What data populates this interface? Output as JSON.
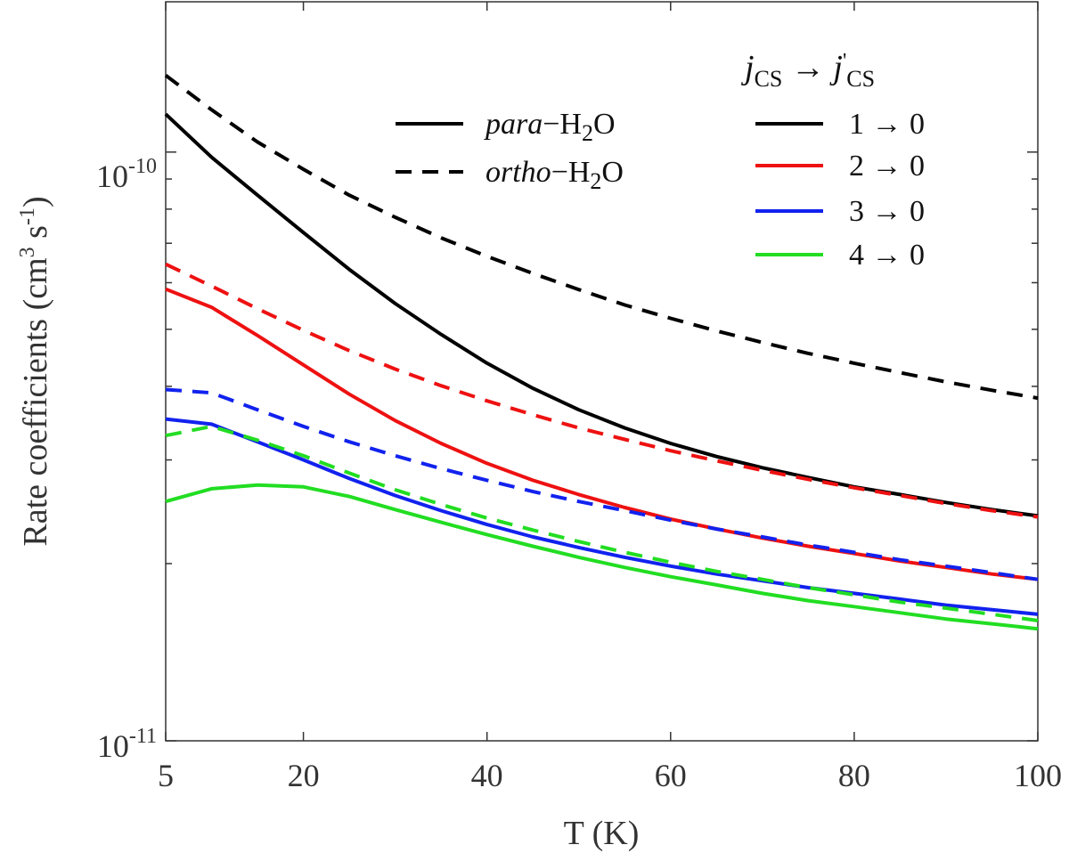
{
  "chart_data": {
    "type": "line",
    "title": "",
    "xlabel": "T (K)",
    "ylabel": "Rate coefficients (cm³ s⁻¹)",
    "ylabel_parts": {
      "main": "Rate coefficients (cm",
      "sup3": "3",
      "mid": " s",
      "supm1": "-1",
      "close": ")"
    },
    "xlim": [
      5,
      100
    ],
    "ylim": [
      1e-11,
      1.8e-10
    ],
    "yscale": "log",
    "xticks": [
      5,
      20,
      40,
      60,
      80,
      100
    ],
    "xtick_labels": [
      "5",
      "20",
      "40",
      "60",
      "80",
      "100"
    ],
    "yticks": [
      {
        "value": 1e-10,
        "base": "10",
        "exp": "-10"
      },
      {
        "value": 1e-11,
        "base": "10",
        "exp": "-11"
      }
    ],
    "x": [
      5,
      10,
      15,
      20,
      25,
      30,
      35,
      40,
      45,
      50,
      55,
      60,
      65,
      70,
      75,
      80,
      85,
      90,
      95,
      100
    ],
    "series": [
      {
        "name": "para-H2O 1→0",
        "color": "#000000",
        "dash": "solid",
        "values": [
          1.16e-10,
          9.8e-11,
          8.45e-11,
          7.3e-11,
          6.32e-11,
          5.53e-11,
          4.9e-11,
          4.38e-11,
          3.97e-11,
          3.65e-11,
          3.4e-11,
          3.2e-11,
          3.04e-11,
          2.91e-11,
          2.8e-11,
          2.7e-11,
          2.62e-11,
          2.54e-11,
          2.47e-11,
          2.41e-11
        ]
      },
      {
        "name": "ortho-H2O 1→0",
        "color": "#000000",
        "dash": "dashed",
        "values": [
          1.35e-10,
          1.18e-10,
          1.04e-10,
          9.35e-11,
          8.45e-11,
          7.75e-11,
          7.15e-11,
          6.65e-11,
          6.22e-11,
          5.84e-11,
          5.5e-11,
          5.22e-11,
          4.97e-11,
          4.75e-11,
          4.55e-11,
          4.38e-11,
          4.22e-11,
          4.07e-11,
          3.94e-11,
          3.82e-11
        ]
      },
      {
        "name": "para-H2O 2→0",
        "color": "#ee1111",
        "dash": "solid",
        "values": [
          5.85e-11,
          5.45e-11,
          4.88e-11,
          4.35e-11,
          3.88e-11,
          3.5e-11,
          3.2e-11,
          2.96e-11,
          2.77e-11,
          2.62e-11,
          2.49e-11,
          2.38e-11,
          2.29e-11,
          2.21e-11,
          2.14e-11,
          2.08e-11,
          2.02e-11,
          1.97e-11,
          1.92e-11,
          1.88e-11
        ]
      },
      {
        "name": "ortho-H2O 2→0",
        "color": "#ee1111",
        "dash": "dashed",
        "values": [
          6.45e-11,
          5.92e-11,
          5.42e-11,
          4.98e-11,
          4.6e-11,
          4.28e-11,
          4.01e-11,
          3.78e-11,
          3.58e-11,
          3.4e-11,
          3.25e-11,
          3.11e-11,
          2.99e-11,
          2.88e-11,
          2.78e-11,
          2.69e-11,
          2.61e-11,
          2.53e-11,
          2.46e-11,
          2.4e-11
        ]
      },
      {
        "name": "para-H2O 3→0",
        "color": "#1122ee",
        "dash": "solid",
        "values": [
          3.52e-11,
          3.45e-11,
          3.22e-11,
          3e-11,
          2.79e-11,
          2.61e-11,
          2.46e-11,
          2.33e-11,
          2.22e-11,
          2.13e-11,
          2.05e-11,
          1.98e-11,
          1.92e-11,
          1.87e-11,
          1.82e-11,
          1.78e-11,
          1.74e-11,
          1.7e-11,
          1.67e-11,
          1.64e-11
        ]
      },
      {
        "name": "ortho-H2O 3→0",
        "color": "#1122ee",
        "dash": "dashed",
        "values": [
          3.95e-11,
          3.9e-11,
          3.65e-11,
          3.42e-11,
          3.22e-11,
          3.05e-11,
          2.9e-11,
          2.77e-11,
          2.65e-11,
          2.55e-11,
          2.46e-11,
          2.37e-11,
          2.29e-11,
          2.22e-11,
          2.15e-11,
          2.09e-11,
          2.03e-11,
          1.98e-11,
          1.93e-11,
          1.88e-11
        ]
      },
      {
        "name": "para-H2O 4→0",
        "color": "#22dd22",
        "dash": "solid",
        "values": [
          2.55e-11,
          2.68e-11,
          2.72e-11,
          2.7e-11,
          2.6e-11,
          2.47e-11,
          2.35e-11,
          2.24e-11,
          2.14e-11,
          2.05e-11,
          1.97e-11,
          1.9e-11,
          1.84e-11,
          1.78e-11,
          1.73e-11,
          1.69e-11,
          1.65e-11,
          1.61e-11,
          1.58e-11,
          1.55e-11
        ]
      },
      {
        "name": "ortho-H2O 4→0",
        "color": "#22dd22",
        "dash": "dashed",
        "values": [
          3.3e-11,
          3.42e-11,
          3.24e-11,
          3.05e-11,
          2.85e-11,
          2.67e-11,
          2.52e-11,
          2.39e-11,
          2.28e-11,
          2.18e-11,
          2.09e-11,
          2.01e-11,
          1.94e-11,
          1.88e-11,
          1.82e-11,
          1.77e-11,
          1.72e-11,
          1.68e-11,
          1.64e-11,
          1.6e-11
        ]
      }
    ],
    "legend_styles": {
      "items": [
        {
          "italic": "para",
          "rest": "−H",
          "sub": "2",
          "end": "O",
          "dash": "solid",
          "color": "#000000"
        },
        {
          "italic": "ortho",
          "rest": "−H",
          "sub": "2",
          "end": "O",
          "dash": "dashed",
          "color": "#000000"
        }
      ]
    },
    "legend_transitions": {
      "title": {
        "j": "j",
        "sub": "CS",
        "arrow": " → ",
        "jp": "j",
        "prime": "'",
        "sub2": "CS"
      },
      "items": [
        {
          "label": "1 → 0",
          "color": "#000000"
        },
        {
          "label": "2 → 0",
          "color": "#ee1111"
        },
        {
          "label": "3 → 0",
          "color": "#1122ee"
        },
        {
          "label": "4 → 0",
          "color": "#22dd22"
        }
      ]
    }
  }
}
